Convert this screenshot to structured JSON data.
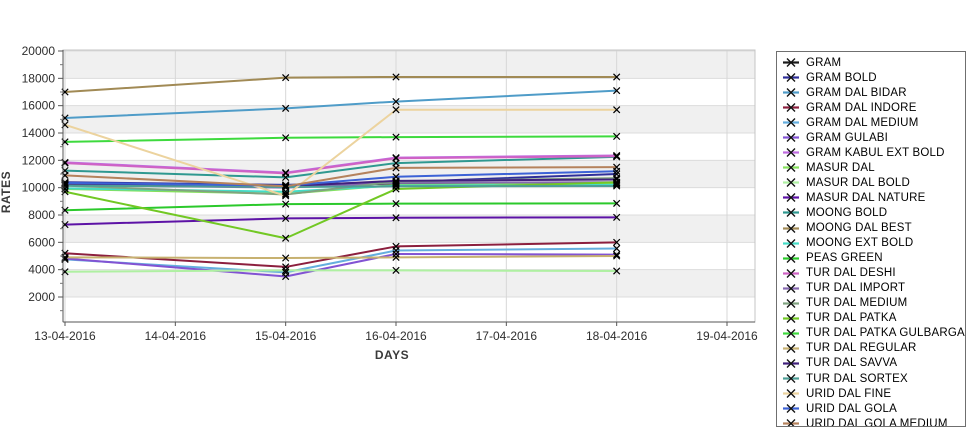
{
  "chart_data": {
    "type": "line",
    "title": "",
    "xlabel": "DAYS",
    "ylabel": "RATES",
    "ylim": [
      0,
      20000
    ],
    "y_ticks": [
      2000,
      4000,
      6000,
      8000,
      10000,
      12000,
      14000,
      16000,
      18000,
      20000
    ],
    "x_tick_labels": [
      "13-04-2016",
      "14-04-2016",
      "15-04-2016",
      "16-04-2016",
      "17-04-2016",
      "18-04-2016",
      "19-04-2016"
    ],
    "data_x_labels": [
      "13-04-2016",
      "15-04-2016",
      "16-04-2016",
      "18-04-2016"
    ],
    "data_x_indices": [
      0,
      2,
      3,
      5
    ],
    "grid": true,
    "legend_position": "right",
    "marker": "x",
    "marker_color": "#000000",
    "band_color": "#f0f0f0",
    "series": [
      {
        "name": "GRAM",
        "color": "#1a1a1a",
        "values": [
          10250,
          10150,
          10300,
          10350
        ]
      },
      {
        "name": "GRAM BOLD",
        "color": "#2e2e99",
        "values": [
          10400,
          10200,
          10400,
          11000
        ]
      },
      {
        "name": "GRAM DAL BIDAR",
        "color": "#4f9cc8",
        "values": [
          15100,
          15800,
          16300,
          17100
        ]
      },
      {
        "name": "GRAM DAL INDORE",
        "color": "#8c1f3e",
        "values": [
          5200,
          4200,
          5700,
          6000
        ]
      },
      {
        "name": "GRAM DAL MEDIUM",
        "color": "#64aede",
        "values": [
          4750,
          3800,
          5400,
          5550
        ]
      },
      {
        "name": "GRAM GULABI",
        "color": "#8253d3",
        "values": [
          4820,
          3500,
          5150,
          5100
        ]
      },
      {
        "name": "GRAM KABUL EXT BOLD",
        "color": "#bf6be0",
        "values": [
          11850,
          11100,
          12200,
          12350
        ]
      },
      {
        "name": "MASUR DAL",
        "color": "#86e05c",
        "values": [
          9900,
          9550,
          10200,
          10280
        ]
      },
      {
        "name": "MASUR DAL BOLD",
        "color": "#aff0a2",
        "values": [
          3850,
          3950,
          3950,
          3900
        ]
      },
      {
        "name": "MASUR DAL NATURE",
        "color": "#5d13a6",
        "values": [
          7300,
          7750,
          7800,
          7830
        ]
      },
      {
        "name": "MOONG BOLD",
        "color": "#2f9890",
        "values": [
          11250,
          10750,
          11800,
          12250
        ]
      },
      {
        "name": "MOONG DAL BEST",
        "color": "#a18a55",
        "values": [
          17000,
          18050,
          18100,
          18100
        ]
      },
      {
        "name": "MOONG EXT BOLD",
        "color": "#44dcc6",
        "values": [
          9950,
          9700,
          10150,
          10200
        ]
      },
      {
        "name": "PEAS GREEN",
        "color": "#2bc92b",
        "values": [
          8350,
          8800,
          8830,
          8850
        ]
      },
      {
        "name": "TUR DAL DESHI",
        "color": "#cf62c4",
        "values": [
          11800,
          11050,
          12150,
          12300
        ]
      },
      {
        "name": "TUR DAL IMPORT",
        "color": "#8568b0",
        "values": [
          10200,
          10000,
          10350,
          10400
        ]
      },
      {
        "name": "TUR DAL MEDIUM",
        "color": "#80a380",
        "values": [
          10150,
          9500,
          10450,
          10700
        ]
      },
      {
        "name": "TUR DAL PATKA",
        "color": "#72c824",
        "values": [
          9700,
          6300,
          9900,
          10400
        ]
      },
      {
        "name": "TUR DAL PATKA GULBARGA",
        "color": "#3eda3e",
        "values": [
          13350,
          13650,
          13700,
          13750
        ]
      },
      {
        "name": "TUR DAL REGULAR",
        "color": "#c7b170",
        "values": [
          4900,
          4850,
          4900,
          5000
        ]
      },
      {
        "name": "TUR DAL SAVVA",
        "color": "#41207d",
        "values": [
          10300,
          10100,
          10500,
          10600
        ]
      },
      {
        "name": "TUR DAL SORTEX",
        "color": "#4d9e96",
        "values": [
          10150,
          10050,
          10100,
          10120
        ]
      },
      {
        "name": "URID DAL FINE",
        "color": "#ecd39e",
        "values": [
          14600,
          9400,
          15700,
          15700
        ]
      },
      {
        "name": "URID DAL GOLA",
        "color": "#3c62d6",
        "values": [
          10350,
          10150,
          10800,
          11200
        ]
      },
      {
        "name": "URID DAL GOLA MEDIUM",
        "color": "#b5825c",
        "values": [
          10900,
          10100,
          11450,
          11500
        ]
      }
    ]
  }
}
